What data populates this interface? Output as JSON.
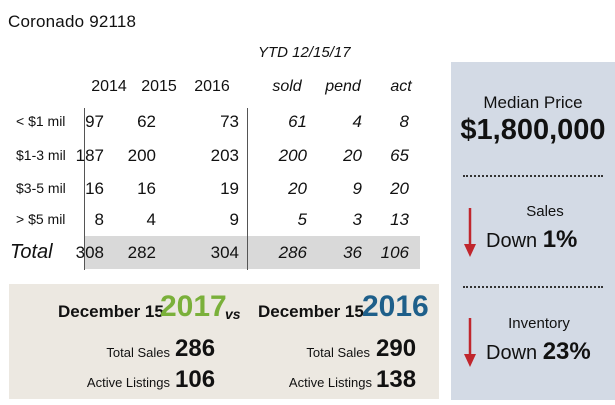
{
  "title": "Coronado 92118",
  "table": {
    "ytd_label": "YTD 12/15/17",
    "columns": [
      "2014",
      "2015",
      "2016",
      "sold",
      "pend",
      "act"
    ],
    "rows": [
      {
        "label": "< $1 mil",
        "values": [
          "97",
          "62",
          "73",
          "61",
          "4",
          "8"
        ]
      },
      {
        "label": "$1-3 mil",
        "values": [
          "187",
          "200",
          "203",
          "200",
          "20",
          "65"
        ]
      },
      {
        "label": "$3-5 mil",
        "values": [
          "16",
          "16",
          "19",
          "20",
          "9",
          "20"
        ]
      },
      {
        "label": "> $5 mil",
        "values": [
          "8",
          "4",
          "9",
          "5",
          "3",
          "13"
        ]
      }
    ],
    "total": {
      "label": "Total",
      "values": [
        "308",
        "282",
        "304",
        "286",
        "36",
        "106"
      ]
    }
  },
  "comparison": {
    "left": {
      "prefix": "December 15",
      "year": "2017",
      "year_color": "#7ab03a",
      "sales_label": "Total Sales",
      "sales": "286",
      "listings_label": "Active Listings",
      "listings": "106"
    },
    "vs": "vs",
    "right": {
      "prefix": "December 15",
      "year": "2016",
      "year_color": "#1e5f8a",
      "sales_label": "Total Sales",
      "sales": "290",
      "listings_label": "Active Listings",
      "listings": "138"
    }
  },
  "panel": {
    "median_label": "Median Price",
    "median_value": "$1,800,000",
    "sales_label": "Sales",
    "sales_change": "Down",
    "sales_pct": "1%",
    "inventory_label": "Inventory",
    "inventory_change": "Down",
    "inventory_pct": "23%",
    "arrow_color": "#c0262d"
  }
}
